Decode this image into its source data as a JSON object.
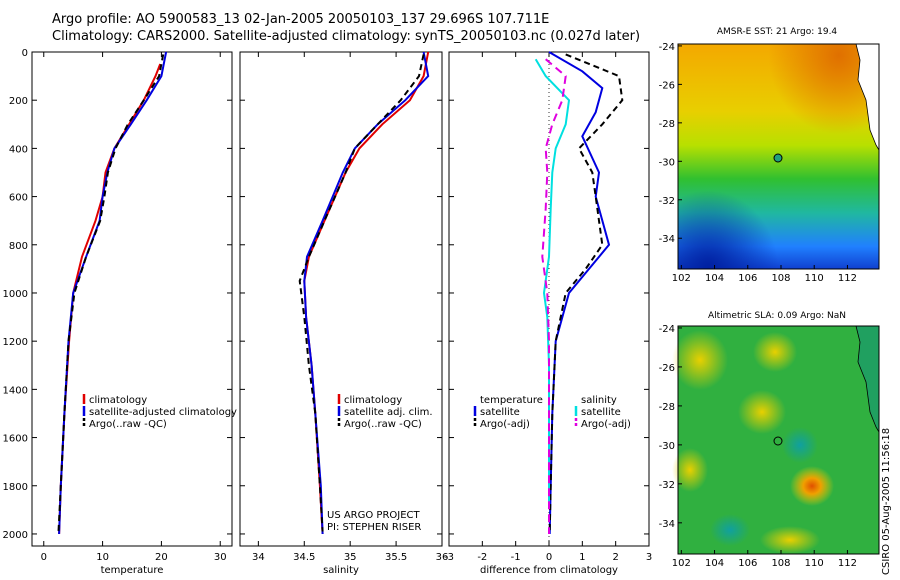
{
  "header": {
    "line1": "Argo profile: AO 5900583_13 02-Jan-2005 20050103_137 29.696S 107.711E",
    "line2": "Climatology: CARS2000. Satellite-adjusted climatology: synTS_20050103.nc (0.027d later)"
  },
  "credit": "CSIRO 05-Aug-2005 11:56:18",
  "colors": {
    "climatology": "#e00000",
    "satellite": "#0000e0",
    "argo": "#000000",
    "sat_cyan": "#00e0e0",
    "argo_magenta": "#e000e0"
  },
  "chart_data": [
    {
      "type": "line",
      "id": "temperature",
      "xlabel": "temperature",
      "xlim": [
        -2,
        32
      ],
      "ylim": [
        0,
        2050
      ],
      "xticks": [
        0,
        10,
        20,
        30
      ],
      "yticks": [
        0,
        200,
        400,
        600,
        800,
        1000,
        1200,
        1400,
        1600,
        1800,
        2000
      ],
      "y_inverted": true,
      "legend": [
        "climatology",
        "satellite-adjusted climatology",
        "Argo(..raw -QC)"
      ],
      "series": [
        {
          "name": "climatology",
          "color": "#e00000",
          "dash": "",
          "x": [
            19.8,
            19.0,
            17.0,
            14.5,
            12.0,
            10.5,
            10.0,
            8.8,
            6.5,
            5.0,
            4.3,
            3.5,
            2.9,
            2.6
          ],
          "y": [
            50,
            100,
            200,
            300,
            400,
            500,
            600,
            700,
            850,
            1000,
            1200,
            1500,
            1800,
            2000
          ]
        },
        {
          "name": "satellite-adjusted climatology",
          "color": "#0000e0",
          "dash": "",
          "x": [
            20.8,
            20.0,
            17.5,
            14.8,
            12.0,
            10.8,
            10.0,
            9.5,
            7.2,
            5.0,
            4.2,
            3.5,
            2.9,
            2.6
          ],
          "y": [
            0,
            100,
            200,
            300,
            400,
            500,
            600,
            700,
            850,
            1000,
            1200,
            1500,
            1800,
            2000
          ]
        },
        {
          "name": "Argo(..raw -QC)",
          "color": "#000000",
          "dash": "6,4",
          "x": [
            20.3,
            19.6,
            17.0,
            14.3,
            12.2,
            10.9,
            10.3,
            9.6,
            7.2,
            5.2,
            4.2,
            3.5,
            2.9,
            2.5
          ],
          "y": [
            10,
            100,
            200,
            300,
            400,
            500,
            600,
            700,
            850,
            1000,
            1200,
            1500,
            1800,
            1990
          ]
        }
      ]
    },
    {
      "type": "line",
      "id": "salinity",
      "xlabel": "salinity",
      "xlim": [
        33.8,
        36.0
      ],
      "ylim": [
        0,
        2050
      ],
      "xticks": [
        34,
        34.5,
        35,
        35.5,
        36
      ],
      "yticks": [],
      "y_inverted": true,
      "legend": [
        "climatology",
        "satellite adj. clim.",
        "Argo(..raw -QC)"
      ],
      "annotation": [
        "US ARGO PROJECT",
        "PI: STEPHEN RISER"
      ],
      "series": [
        {
          "name": "climatology",
          "color": "#e00000",
          "dash": "",
          "x": [
            35.85,
            35.8,
            35.65,
            35.35,
            35.1,
            34.95,
            34.72,
            34.55,
            34.5,
            34.52,
            34.58,
            34.62,
            34.67,
            34.7
          ],
          "y": [
            0,
            100,
            200,
            300,
            400,
            500,
            700,
            850,
            950,
            1100,
            1300,
            1500,
            1800,
            2000
          ]
        },
        {
          "name": "satellite adj. clim.",
          "color": "#0000e0",
          "dash": "",
          "x": [
            35.8,
            35.85,
            35.6,
            35.3,
            35.05,
            34.92,
            34.7,
            34.53,
            34.5,
            34.52,
            34.58,
            34.62,
            34.68,
            34.7
          ],
          "y": [
            0,
            100,
            200,
            300,
            400,
            500,
            700,
            850,
            950,
            1100,
            1300,
            1500,
            1800,
            2000
          ]
        },
        {
          "name": "Argo(..raw -QC)",
          "color": "#000000",
          "dash": "6,4",
          "x": [
            35.8,
            35.75,
            35.55,
            35.3,
            35.05,
            34.95,
            34.72,
            34.55,
            34.45,
            34.5,
            34.55,
            34.62,
            34.67,
            34.7
          ],
          "y": [
            10,
            100,
            200,
            300,
            400,
            500,
            700,
            850,
            950,
            1100,
            1300,
            1500,
            1800,
            1990
          ]
        }
      ]
    },
    {
      "type": "line",
      "id": "difference",
      "xlabel": "difference from climatology",
      "xlim": [
        -3,
        3
      ],
      "ylim": [
        0,
        2050
      ],
      "xticks": [
        -3,
        -2,
        -1,
        0,
        1,
        2,
        3
      ],
      "yticks": [],
      "y_inverted": true,
      "legend_left": [
        "temperature",
        "satellite",
        "Argo(-adj)"
      ],
      "legend_right": [
        "salinity",
        "satellite",
        "Argo(-adj)"
      ],
      "series": [
        {
          "name": "satellite",
          "group": "temperature",
          "color": "#0000e0",
          "dash": "",
          "x": [
            0,
            1.0,
            1.6,
            1.4,
            1.0,
            1.5,
            1.4,
            1.8,
            1.2,
            0.6,
            0.2,
            0.1,
            0.05,
            0.02
          ],
          "y": [
            0,
            80,
            150,
            250,
            350,
            500,
            600,
            800,
            900,
            1000,
            1200,
            1500,
            1800,
            2000
          ]
        },
        {
          "name": "Argo(-adj)",
          "group": "temperature",
          "color": "#000000",
          "dash": "6,4",
          "x": [
            0.5,
            2.1,
            2.2,
            1.6,
            0.9,
            1.3,
            1.4,
            1.6,
            1.1,
            0.5,
            0.2,
            0.1,
            0.05,
            0.02
          ],
          "y": [
            10,
            100,
            200,
            300,
            400,
            500,
            600,
            800,
            900,
            1000,
            1200,
            1500,
            1800,
            1990
          ]
        },
        {
          "name": "satellite",
          "group": "salinity",
          "color": "#00e0e0",
          "dash": "",
          "x": [
            -0.4,
            -0.1,
            0.6,
            0.5,
            0.2,
            0.1,
            0.05,
            0.0,
            -0.15,
            -0.05,
            0.0,
            0.0,
            0.0,
            0.0
          ],
          "y": [
            30,
            100,
            200,
            300,
            400,
            500,
            650,
            850,
            1000,
            1100,
            1300,
            1500,
            1800,
            1880
          ]
        },
        {
          "name": "Argo(-adj)",
          "group": "salinity",
          "color": "#e000e0",
          "dash": "8,5",
          "x": [
            -0.1,
            0.5,
            0.4,
            0.1,
            -0.1,
            -0.05,
            -0.1,
            -0.2,
            -0.05,
            0.0,
            0.0,
            0.0,
            0.0,
            0.0
          ],
          "y": [
            30,
            100,
            200,
            300,
            400,
            500,
            650,
            850,
            1000,
            1200,
            1400,
            1600,
            1800,
            2000
          ]
        }
      ]
    }
  ],
  "maps": [
    {
      "id": "sst",
      "title": "AMSR-E SST: 21  Argo: 19.4",
      "xticks": [
        102,
        104,
        106,
        108,
        110,
        112
      ],
      "yticks": [
        -24,
        -26,
        -28,
        -30,
        -32,
        -34
      ]
    },
    {
      "id": "sla",
      "title": "Altimetric SLA: 0.09  Argo: NaN",
      "xticks": [
        102,
        104,
        106,
        108,
        110,
        112
      ],
      "yticks": [
        -24,
        -26,
        -28,
        -30,
        -32,
        -34
      ]
    }
  ]
}
